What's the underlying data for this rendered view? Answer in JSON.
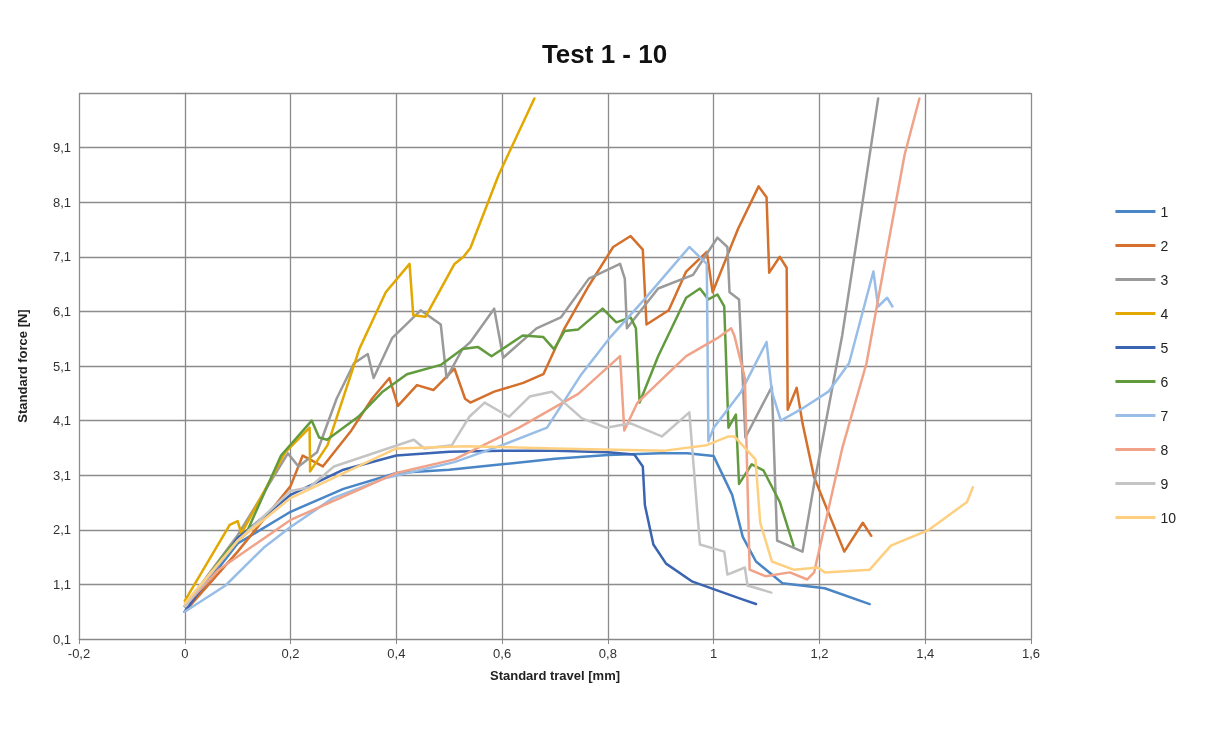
{
  "chart_data": {
    "type": "line",
    "title": "Test 1 - 10",
    "xlabel": "Standard travel [mm]",
    "ylabel": "Standard force [N]",
    "xlim": [
      -0.2,
      1.6
    ],
    "xticks": [
      {
        "value": -0.2,
        "label": "-0,2"
      },
      0,
      {
        "value": 0.2,
        "label": "0,2"
      },
      {
        "value": 0.4,
        "label": "0,4"
      },
      {
        "value": 0.6,
        "label": "0,6"
      },
      {
        "value": 0.8,
        "label": "0,8"
      },
      1,
      {
        "value": 1.2,
        "label": "1,2"
      },
      {
        "value": 1.4,
        "label": "1,4"
      },
      {
        "value": 1.6,
        "label": "1,6"
      }
    ],
    "ylim": [
      0.1,
      10.1
    ],
    "yticks": [
      {
        "value": 0.1,
        "label": "0,1"
      },
      {
        "value": 1.1,
        "label": "1,1"
      },
      {
        "value": 2.1,
        "label": "2,1"
      },
      {
        "value": 3.1,
        "label": "3,1"
      },
      {
        "value": 4.1,
        "label": "4,1"
      },
      {
        "value": 5.1,
        "label": "5,1"
      },
      {
        "value": 6.1,
        "label": "6,1"
      },
      {
        "value": 7.1,
        "label": "7,1"
      },
      {
        "value": 8.1,
        "label": "8,1"
      },
      {
        "value": 9.1,
        "label": "9,1"
      },
      {
        "value": 10.1,
        "label": null
      }
    ],
    "grid": true,
    "legend": "right",
    "marker": "none",
    "line_style": "solid",
    "series": [
      {
        "name": "1",
        "color": "#4a86c5",
        "x": [
          0,
          0.1,
          0.2,
          0.3,
          0.4,
          0.5,
          0.6,
          0.7,
          0.8,
          0.9,
          0.95,
          1.0,
          1.035,
          1.055,
          1.08,
          1.13,
          1.21,
          1.295
        ],
        "values": [
          0.6,
          1.85,
          2.43,
          2.85,
          3.14,
          3.2,
          3.3,
          3.4,
          3.47,
          3.5,
          3.5,
          3.45,
          2.74,
          1.97,
          1.52,
          1.12,
          1.03,
          0.74
        ]
      },
      {
        "name": "2",
        "color": "#d4702c",
        "x": [
          0,
          0.1,
          0.2,
          0.223,
          0.261,
          0.315,
          0.354,
          0.387,
          0.403,
          0.439,
          0.47,
          0.51,
          0.53,
          0.54,
          0.585,
          0.64,
          0.678,
          0.718,
          0.764,
          0.81,
          0.843,
          0.866,
          0.873,
          0.915,
          0.948,
          0.987,
          0.998,
          1.046,
          1.085,
          1.1,
          1.105,
          1.125,
          1.138,
          1.14,
          1.157,
          1.168,
          1.19,
          1.247,
          1.282,
          1.298
        ],
        "values": [
          0.6,
          1.7,
          2.9,
          3.46,
          3.26,
          3.92,
          4.5,
          4.88,
          4.37,
          4.75,
          4.66,
          5.05,
          4.5,
          4.43,
          4.63,
          4.79,
          4.95,
          5.79,
          6.57,
          7.28,
          7.48,
          7.23,
          5.86,
          6.12,
          6.83,
          7.19,
          6.45,
          7.61,
          8.39,
          8.19,
          6.81,
          7.1,
          6.9,
          4.3,
          4.7,
          4.05,
          3.06,
          1.7,
          2.23,
          1.99
        ]
      },
      {
        "name": "3",
        "color": "#9a9a9a",
        "x": [
          0,
          0.1,
          0.195,
          0.215,
          0.25,
          0.287,
          0.32,
          0.346,
          0.357,
          0.392,
          0.446,
          0.484,
          0.495,
          0.525,
          0.54,
          0.585,
          0.602,
          0.665,
          0.711,
          0.764,
          0.823,
          0.832,
          0.836,
          0.895,
          0.961,
          1.007,
          1.026,
          1.03,
          1.048,
          1.06,
          1.11,
          1.12,
          1.168,
          1.19,
          1.243,
          1.28,
          1.311
        ],
        "values": [
          0.7,
          2.0,
          3.5,
          3.26,
          3.52,
          4.5,
          5.15,
          5.32,
          4.88,
          5.61,
          6.12,
          5.86,
          4.88,
          5.41,
          5.54,
          6.15,
          5.25,
          5.79,
          5.99,
          6.7,
          6.97,
          6.7,
          5.79,
          6.52,
          6.77,
          7.45,
          7.28,
          6.45,
          6.32,
          3.79,
          4.72,
          1.9,
          1.7,
          2.94,
          5.66,
          8.0,
          10.0
        ]
      },
      {
        "name": "4",
        "color": "#e2a800",
        "x": [
          0,
          0.085,
          0.1,
          0.107,
          0.19,
          0.236,
          0.237,
          0.27,
          0.33,
          0.38,
          0.425,
          0.432,
          0.455,
          0.51,
          0.527,
          0.54,
          0.593,
          0.661
        ],
        "values": [
          0.8,
          2.19,
          2.26,
          2.03,
          3.52,
          3.97,
          3.17,
          3.65,
          5.41,
          6.45,
          6.97,
          6.03,
          6.0,
          6.97,
          7.1,
          7.26,
          8.59,
          10.0
        ]
      },
      {
        "name": "5",
        "color": "#3b64b2",
        "x": [
          0,
          0.1,
          0.2,
          0.3,
          0.4,
          0.5,
          0.6,
          0.7,
          0.8,
          0.85,
          0.866,
          0.87,
          0.886,
          0.91,
          0.96,
          1.053,
          1.08
        ],
        "values": [
          0.6,
          1.95,
          2.74,
          3.2,
          3.46,
          3.53,
          3.55,
          3.55,
          3.52,
          3.48,
          3.26,
          2.55,
          1.83,
          1.48,
          1.15,
          0.83,
          0.74
        ]
      },
      {
        "name": "6",
        "color": "#629b3d",
        "x": [
          0,
          0.085,
          0.116,
          0.182,
          0.24,
          0.254,
          0.269,
          0.328,
          0.374,
          0.42,
          0.484,
          0.525,
          0.554,
          0.58,
          0.639,
          0.678,
          0.698,
          0.718,
          0.744,
          0.79,
          0.816,
          0.843,
          0.853,
          0.86,
          0.895,
          0.948,
          0.974,
          0.99,
          1.007,
          1.02,
          1.028,
          1.042,
          1.048,
          1.072,
          1.094,
          1.125,
          1.151
        ],
        "values": [
          0.7,
          1.77,
          2.03,
          3.46,
          4.1,
          3.79,
          3.75,
          4.17,
          4.63,
          4.95,
          5.12,
          5.41,
          5.45,
          5.28,
          5.66,
          5.63,
          5.41,
          5.74,
          5.77,
          6.15,
          5.9,
          5.99,
          5.79,
          4.43,
          5.28,
          6.35,
          6.52,
          6.32,
          6.41,
          6.19,
          3.97,
          4.21,
          2.94,
          3.3,
          3.19,
          2.61,
          1.81
        ]
      },
      {
        "name": "7",
        "color": "#98bde6",
        "x": [
          0,
          0.077,
          0.149,
          0.2,
          0.28,
          0.38,
          0.51,
          0.6,
          0.685,
          0.75,
          0.803,
          0.869,
          0.954,
          0.987,
          0.99,
          1.0,
          1.052,
          1.1,
          1.11,
          1.127,
          1.164,
          1.217,
          1.256,
          1.302,
          1.311,
          1.328,
          1.338
        ],
        "values": [
          0.6,
          1.08,
          1.77,
          2.15,
          2.68,
          3.05,
          3.34,
          3.65,
          3.97,
          4.95,
          5.61,
          6.32,
          7.28,
          6.97,
          3.72,
          3.97,
          4.63,
          5.54,
          4.63,
          4.1,
          4.3,
          4.63,
          5.15,
          6.83,
          6.19,
          6.35,
          6.19
        ]
      },
      {
        "name": "8",
        "color": "#f0a388",
        "x": [
          0,
          0.064,
          0.2,
          0.4,
          0.51,
          0.632,
          0.744,
          0.823,
          0.831,
          0.856,
          0.948,
          1.007,
          1.033,
          1.039,
          1.059,
          1.068,
          1.098,
          1.144,
          1.177,
          1.19,
          1.243,
          1.289,
          1.328,
          1.361,
          1.389
        ],
        "values": [
          0.7,
          1.37,
          2.28,
          3.14,
          3.39,
          3.97,
          4.59,
          5.28,
          3.92,
          4.43,
          5.28,
          5.61,
          5.79,
          5.66,
          4.88,
          1.37,
          1.25,
          1.32,
          1.19,
          1.32,
          3.59,
          5.15,
          7.23,
          8.97,
          10.0
        ]
      },
      {
        "name": "9",
        "color": "#c4c4c4",
        "x": [
          0,
          0.1,
          0.2,
          0.236,
          0.282,
          0.433,
          0.453,
          0.505,
          0.538,
          0.567,
          0.613,
          0.652,
          0.694,
          0.751,
          0.797,
          0.843,
          0.902,
          0.954,
          0.974,
          1.02,
          1.026,
          1.059,
          1.064,
          1.109
        ],
        "values": [
          0.7,
          1.9,
          2.81,
          2.88,
          3.26,
          3.75,
          3.59,
          3.65,
          4.17,
          4.43,
          4.17,
          4.54,
          4.63,
          4.14,
          3.97,
          4.05,
          3.81,
          4.25,
          1.83,
          1.7,
          1.28,
          1.41,
          1.08,
          0.95
        ]
      },
      {
        "name": "10",
        "color": "#ffcf80",
        "x": [
          0,
          0.1,
          0.2,
          0.4,
          0.53,
          0.698,
          0.908,
          0.987,
          1.028,
          1.039,
          1.079,
          1.088,
          1.11,
          1.151,
          1.197,
          1.21,
          1.295,
          1.335,
          1.407,
          1.479,
          1.49
        ],
        "values": [
          0.75,
          1.9,
          2.68,
          3.59,
          3.63,
          3.59,
          3.55,
          3.65,
          3.81,
          3.81,
          3.39,
          2.23,
          1.52,
          1.37,
          1.41,
          1.32,
          1.37,
          1.81,
          2.1,
          2.61,
          2.88
        ]
      }
    ]
  }
}
